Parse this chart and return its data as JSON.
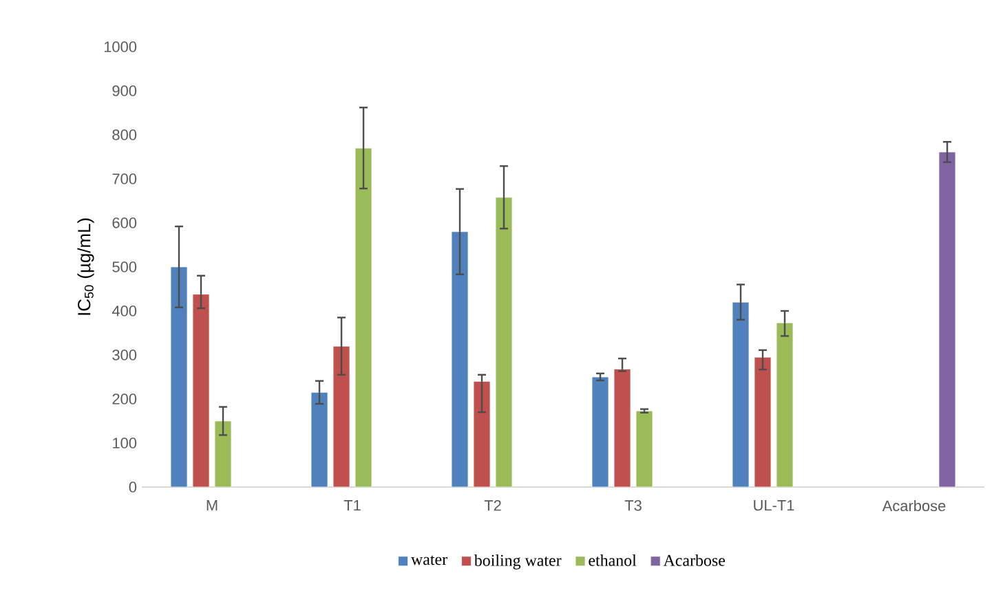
{
  "chart_data": {
    "type": "bar",
    "ylabel": "IC$_{50}$ (µg/mL)",
    "categories": [
      "M",
      "T1",
      "T2",
      "T3",
      "UL-T1",
      "Acarbose"
    ],
    "series": [
      {
        "name": "water",
        "color": "#4f81bd",
        "values": [
          500,
          215,
          580,
          250,
          420,
          null
        ],
        "errors": [
          92,
          26,
          97,
          8,
          40,
          null
        ]
      },
      {
        "name": "boiling water",
        "color": "#c0504d",
        "values": [
          438,
          320,
          240,
          268,
          295,
          null
        ],
        "errors": [
          [
            406,
            480
          ],
          65,
          [
            170,
            255
          ],
          [
            263,
            292
          ],
          [
            267,
            311
          ],
          null
        ]
      },
      {
        "name": "ethanol",
        "color": "#9bbb59",
        "values": [
          150,
          770,
          658,
          173,
          373,
          null
        ],
        "errors": [
          32,
          92,
          71,
          4,
          [
            343,
            400
          ],
          null
        ]
      },
      {
        "name": "Acarbose",
        "color": "#8064a2",
        "values": [
          null,
          null,
          null,
          null,
          null,
          761
        ],
        "errors": [
          null,
          null,
          null,
          null,
          null,
          23
        ]
      }
    ],
    "ylim": [
      0,
      1000
    ],
    "yticks": [
      0,
      100,
      200,
      300,
      400,
      500,
      600,
      700,
      800,
      900,
      1000
    ],
    "grid": false,
    "legend": "bottom"
  }
}
